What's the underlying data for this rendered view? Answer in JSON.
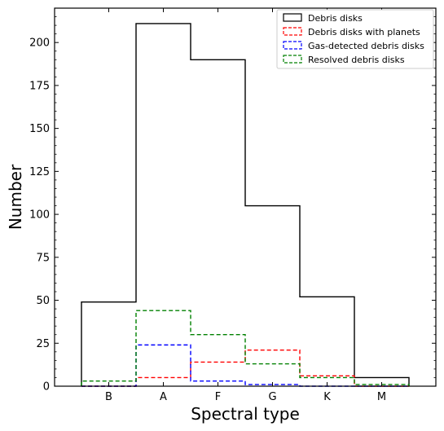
{
  "chart_data": {
    "type": "step",
    "categories": [
      "B",
      "A",
      "F",
      "G",
      "K",
      "M"
    ],
    "xlabel": "Spectral type",
    "ylabel": "Number",
    "ylim": [
      0,
      220
    ],
    "yticks": [
      0,
      25,
      50,
      75,
      100,
      125,
      150,
      175,
      200
    ],
    "grid": false,
    "legend_position": "top-right",
    "series": [
      {
        "name": "Debris disks",
        "values": [
          49,
          211,
          190,
          105,
          52,
          5
        ],
        "color": "#000000",
        "dash": "solid"
      },
      {
        "name": "Debris disks with planets",
        "values": [
          0,
          5,
          14,
          21,
          6,
          0
        ],
        "color": "#ff0000",
        "dash": "dashed"
      },
      {
        "name": "Gas-detected debris disks",
        "values": [
          0,
          24,
          3,
          1,
          0,
          0
        ],
        "color": "#0000ff",
        "dash": "dashed"
      },
      {
        "name": "Resolved debris disks",
        "values": [
          3,
          44,
          30,
          13,
          5,
          1
        ],
        "color": "#008000",
        "dash": "dashed"
      }
    ]
  }
}
